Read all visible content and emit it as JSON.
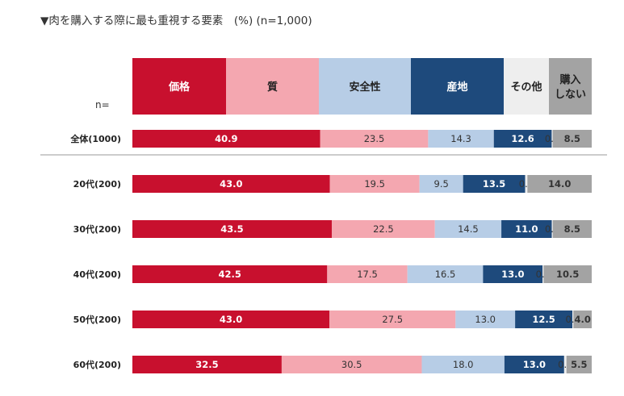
{
  "title": "▼肉を購入する際に最も重視する要素　(%) (n=1,000)",
  "n_label": "n=",
  "colors": {
    "price": "#c8102e",
    "quality": "#f4a7b0",
    "safety": "#b7cde6",
    "origin": "#1e4a7c",
    "other": "#eeeeee",
    "no_purchase": "#a3a3a3",
    "separator": "#999999"
  },
  "chart_data": {
    "type": "bar",
    "orientation": "horizontal",
    "stacked": true,
    "unit": "%",
    "title": "▼肉を購入する際に最も重視する要素　(%) (n=1,000)",
    "xlim": [
      0,
      100
    ],
    "legend_position": "top",
    "legend": [
      {
        "key": "price",
        "label": "価格"
      },
      {
        "key": "quality",
        "label": "質"
      },
      {
        "key": "safety",
        "label": "安全性"
      },
      {
        "key": "origin",
        "label": "産地"
      },
      {
        "key": "other",
        "label": "その他"
      },
      {
        "key": "no_purchase",
        "label": "購入\nしない"
      }
    ],
    "categories": [
      "全体(1000)",
      "20代(200)",
      "30代(200)",
      "40代(200)",
      "50代(200)",
      "60代(200)"
    ],
    "series": [
      {
        "name": "価格",
        "key": "price",
        "values": [
          40.9,
          43.0,
          43.5,
          42.5,
          43.0,
          32.5
        ]
      },
      {
        "name": "質",
        "key": "quality",
        "values": [
          23.5,
          19.5,
          22.5,
          17.5,
          27.5,
          30.5
        ]
      },
      {
        "name": "安全性",
        "key": "safety",
        "values": [
          14.3,
          9.5,
          14.5,
          16.5,
          13.0,
          18.0
        ]
      },
      {
        "name": "産地",
        "key": "origin",
        "values": [
          12.6,
          13.5,
          11.0,
          13.0,
          12.5,
          13.0
        ]
      },
      {
        "name": "その他",
        "key": "other",
        "values": [
          0.2,
          0.5,
          0.0,
          0.0,
          0.0,
          0.5
        ]
      },
      {
        "name": "購入しない",
        "key": "no_purchase",
        "values": [
          8.5,
          14.0,
          8.5,
          10.5,
          4.0,
          5.5
        ]
      }
    ]
  }
}
